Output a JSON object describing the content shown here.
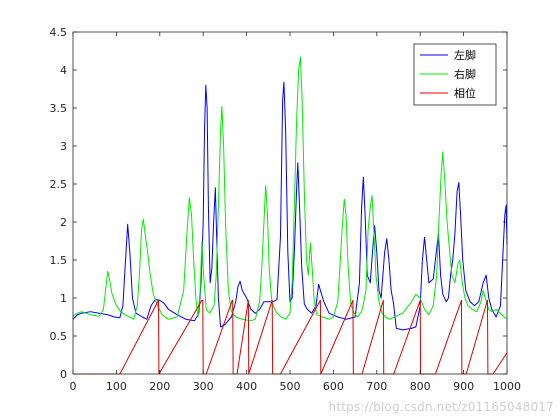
{
  "chart_data": {
    "type": "line",
    "title": "",
    "xlabel": "",
    "ylabel": "",
    "xlim": [
      0,
      1000
    ],
    "ylim": [
      0,
      4.5
    ],
    "xticks": [
      0,
      100,
      200,
      300,
      400,
      500,
      600,
      700,
      800,
      900,
      1000
    ],
    "yticks": [
      0,
      0.5,
      1,
      1.5,
      2,
      2.5,
      3,
      3.5,
      4,
      4.5
    ],
    "grid": false,
    "legend_position": "top-right",
    "series": [
      {
        "name": "左脚",
        "color": "#0000ff",
        "points": [
          [
            0,
            0.72
          ],
          [
            10,
            0.78
          ],
          [
            20,
            0.8
          ],
          [
            40,
            0.82
          ],
          [
            60,
            0.8
          ],
          [
            80,
            0.78
          ],
          [
            95,
            0.75
          ],
          [
            108,
            0.74
          ],
          [
            115,
            0.9
          ],
          [
            120,
            1.4
          ],
          [
            126,
            1.97
          ],
          [
            131,
            1.6
          ],
          [
            137,
            1.0
          ],
          [
            145,
            0.8
          ],
          [
            160,
            0.75
          ],
          [
            170,
            0.72
          ],
          [
            180,
            0.9
          ],
          [
            190,
            0.98
          ],
          [
            200,
            0.97
          ],
          [
            210,
            0.93
          ],
          [
            220,
            0.85
          ],
          [
            240,
            0.78
          ],
          [
            260,
            0.72
          ],
          [
            280,
            0.7
          ],
          [
            290,
            0.8
          ],
          [
            295,
            1.2
          ],
          [
            300,
            2.0
          ],
          [
            303,
            3.2
          ],
          [
            306,
            3.8
          ],
          [
            309,
            3.5
          ],
          [
            312,
            2.2
          ],
          [
            316,
            1.2
          ],
          [
            320,
            1.4
          ],
          [
            324,
            2.0
          ],
          [
            328,
            2.45
          ],
          [
            331,
            1.8
          ],
          [
            335,
            1.0
          ],
          [
            340,
            0.62
          ],
          [
            350,
            0.65
          ],
          [
            365,
            0.75
          ],
          [
            375,
            0.95
          ],
          [
            380,
            1.15
          ],
          [
            385,
            1.22
          ],
          [
            390,
            1.1
          ],
          [
            400,
            1.0
          ],
          [
            410,
            0.85
          ],
          [
            420,
            0.8
          ],
          [
            430,
            0.85
          ],
          [
            440,
            0.95
          ],
          [
            460,
            0.95
          ],
          [
            470,
            0.98
          ],
          [
            478,
            1.8
          ],
          [
            483,
            3.6
          ],
          [
            486,
            3.84
          ],
          [
            490,
            3.2
          ],
          [
            495,
            1.6
          ],
          [
            500,
            0.95
          ],
          [
            505,
            1.0
          ],
          [
            510,
            1.6
          ],
          [
            515,
            2.4
          ],
          [
            518,
            2.78
          ],
          [
            522,
            2.2
          ],
          [
            527,
            1.4
          ],
          [
            533,
            0.92
          ],
          [
            540,
            0.85
          ],
          [
            550,
            0.8
          ],
          [
            560,
            0.9
          ],
          [
            566,
            1.18
          ],
          [
            570,
            1.1
          ],
          [
            578,
            0.95
          ],
          [
            590,
            0.8
          ],
          [
            610,
            0.75
          ],
          [
            630,
            0.72
          ],
          [
            650,
            0.75
          ],
          [
            660,
            1.2
          ],
          [
            665,
            2.2
          ],
          [
            669,
            2.59
          ],
          [
            673,
            2.1
          ],
          [
            678,
            1.3
          ],
          [
            685,
            1.2
          ],
          [
            690,
            1.6
          ],
          [
            695,
            1.95
          ],
          [
            700,
            1.6
          ],
          [
            705,
            1.1
          ],
          [
            710,
            1.0
          ],
          [
            718,
            1.6
          ],
          [
            723,
            1.78
          ],
          [
            728,
            1.5
          ],
          [
            733,
            1.1
          ],
          [
            738,
            0.95
          ],
          [
            745,
            0.6
          ],
          [
            760,
            0.58
          ],
          [
            780,
            0.6
          ],
          [
            790,
            0.62
          ],
          [
            800,
            0.9
          ],
          [
            805,
            1.5
          ],
          [
            810,
            1.8
          ],
          [
            815,
            1.5
          ],
          [
            820,
            1.2
          ],
          [
            830,
            1.25
          ],
          [
            837,
            1.6
          ],
          [
            842,
            1.85
          ],
          [
            847,
            1.3
          ],
          [
            852,
            1.05
          ],
          [
            860,
            0.95
          ],
          [
            865,
            1.0
          ],
          [
            870,
            1.3
          ],
          [
            875,
            1.5
          ],
          [
            880,
            1.85
          ],
          [
            885,
            2.4
          ],
          [
            889,
            2.52
          ],
          [
            893,
            2.1
          ],
          [
            898,
            1.5
          ],
          [
            905,
            1.1
          ],
          [
            915,
            0.95
          ],
          [
            925,
            0.9
          ],
          [
            935,
            0.95
          ],
          [
            945,
            1.2
          ],
          [
            952,
            1.3
          ],
          [
            958,
            1.0
          ],
          [
            965,
            0.85
          ],
          [
            975,
            0.75
          ],
          [
            985,
            0.9
          ],
          [
            990,
            1.5
          ],
          [
            995,
            2.1
          ],
          [
            998,
            2.22
          ],
          [
            1000,
            1.7
          ]
        ]
      },
      {
        "name": "右脚",
        "color": "#00ee00",
        "points": [
          [
            0,
            0.76
          ],
          [
            10,
            0.8
          ],
          [
            20,
            0.82
          ],
          [
            30,
            0.8
          ],
          [
            40,
            0.78
          ],
          [
            50,
            0.77
          ],
          [
            60,
            0.76
          ],
          [
            70,
            0.85
          ],
          [
            75,
            1.1
          ],
          [
            80,
            1.35
          ],
          [
            85,
            1.22
          ],
          [
            90,
            1.05
          ],
          [
            100,
            0.9
          ],
          [
            110,
            0.82
          ],
          [
            120,
            0.78
          ],
          [
            130,
            0.75
          ],
          [
            140,
            0.72
          ],
          [
            148,
            0.9
          ],
          [
            153,
            1.3
          ],
          [
            158,
            1.9
          ],
          [
            162,
            2.04
          ],
          [
            166,
            1.85
          ],
          [
            172,
            1.6
          ],
          [
            178,
            1.3
          ],
          [
            185,
            1.05
          ],
          [
            195,
            0.9
          ],
          [
            205,
            0.78
          ],
          [
            220,
            0.72
          ],
          [
            240,
            0.75
          ],
          [
            255,
            1.1
          ],
          [
            262,
            1.8
          ],
          [
            268,
            2.32
          ],
          [
            273,
            2.1
          ],
          [
            278,
            1.5
          ],
          [
            283,
            1.0
          ],
          [
            288,
            0.75
          ],
          [
            293,
            1.1
          ],
          [
            297,
            1.74
          ],
          [
            301,
            1.3
          ],
          [
            307,
            0.85
          ],
          [
            315,
            0.8
          ],
          [
            325,
            0.9
          ],
          [
            330,
            1.3
          ],
          [
            335,
            2.2
          ],
          [
            340,
            3.2
          ],
          [
            343,
            3.52
          ],
          [
            347,
            3.0
          ],
          [
            352,
            1.9
          ],
          [
            358,
            1.1
          ],
          [
            365,
            0.82
          ],
          [
            375,
            0.75
          ],
          [
            390,
            0.72
          ],
          [
            410,
            0.7
          ],
          [
            420,
            0.72
          ],
          [
            430,
            0.95
          ],
          [
            435,
            1.4
          ],
          [
            440,
            2.0
          ],
          [
            444,
            2.48
          ],
          [
            448,
            2.1
          ],
          [
            452,
            1.4
          ],
          [
            458,
            0.95
          ],
          [
            465,
            0.85
          ],
          [
            470,
            0.8
          ],
          [
            480,
            0.75
          ],
          [
            490,
            0.72
          ],
          [
            500,
            0.8
          ],
          [
            505,
            1.2
          ],
          [
            510,
            2.2
          ],
          [
            515,
            3.3
          ],
          [
            520,
            4.0
          ],
          [
            524,
            4.17
          ],
          [
            528,
            3.6
          ],
          [
            533,
            2.4
          ],
          [
            538,
            1.5
          ],
          [
            542,
            1.3
          ],
          [
            547,
            1.72
          ],
          [
            551,
            1.4
          ],
          [
            556,
            0.95
          ],
          [
            562,
            0.78
          ],
          [
            575,
            0.75
          ],
          [
            590,
            0.72
          ],
          [
            600,
            0.75
          ],
          [
            610,
            0.95
          ],
          [
            615,
            1.4
          ],
          [
            620,
            1.9
          ],
          [
            625,
            2.3
          ],
          [
            629,
            2.1
          ],
          [
            634,
            1.4
          ],
          [
            640,
            0.92
          ],
          [
            648,
            0.8
          ],
          [
            655,
            0.75
          ],
          [
            665,
            0.82
          ],
          [
            670,
            0.95
          ],
          [
            675,
            1.1
          ],
          [
            680,
            1.9
          ],
          [
            685,
            2.2
          ],
          [
            689,
            2.35
          ],
          [
            693,
            1.9
          ],
          [
            698,
            1.3
          ],
          [
            705,
            0.95
          ],
          [
            712,
            0.8
          ],
          [
            720,
            0.75
          ],
          [
            730,
            0.72
          ],
          [
            740,
            0.75
          ],
          [
            760,
            0.8
          ],
          [
            780,
            0.95
          ],
          [
            790,
            1.05
          ],
          [
            800,
            1.0
          ],
          [
            810,
            0.85
          ],
          [
            820,
            0.78
          ],
          [
            830,
            0.9
          ],
          [
            838,
            1.3
          ],
          [
            843,
            2.0
          ],
          [
            848,
            2.6
          ],
          [
            852,
            2.92
          ],
          [
            856,
            2.6
          ],
          [
            862,
            2.0
          ],
          [
            868,
            1.6
          ],
          [
            873,
            1.3
          ],
          [
            880,
            1.2
          ],
          [
            887,
            1.45
          ],
          [
            891,
            1.5
          ],
          [
            897,
            1.2
          ],
          [
            903,
            1.0
          ],
          [
            910,
            0.9
          ],
          [
            920,
            0.85
          ],
          [
            930,
            0.82
          ],
          [
            940,
            0.95
          ],
          [
            945,
            1.1
          ],
          [
            950,
            1.0
          ],
          [
            958,
            0.85
          ],
          [
            965,
            0.82
          ],
          [
            975,
            0.85
          ],
          [
            985,
            0.8
          ],
          [
            995,
            0.74
          ],
          [
            1000,
            0.73
          ]
        ]
      },
      {
        "name": "相位",
        "color": "#dd0000",
        "points": [
          [
            0,
            0
          ],
          [
            108,
            0
          ],
          [
            197,
            0.97
          ],
          [
            198,
            0
          ],
          [
            297,
            0.97
          ],
          [
            299,
            0.97
          ],
          [
            300,
            0
          ],
          [
            307,
            0
          ],
          [
            367,
            0.97
          ],
          [
            368,
            0.97
          ],
          [
            369,
            0
          ],
          [
            378,
            0
          ],
          [
            404,
            0.97
          ],
          [
            405,
            0
          ],
          [
            459,
            0.97
          ],
          [
            460,
            0
          ],
          [
            478,
            0
          ],
          [
            570,
            0.97
          ],
          [
            571,
            0
          ],
          [
            645,
            0.97
          ],
          [
            646,
            0
          ],
          [
            666,
            0
          ],
          [
            715,
            0.97
          ],
          [
            716,
            0
          ],
          [
            739,
            0
          ],
          [
            800,
            0.97
          ],
          [
            801,
            0
          ],
          [
            835,
            0
          ],
          [
            895,
            0.97
          ],
          [
            896,
            0
          ],
          [
            906,
            0
          ],
          [
            955,
            0.97
          ],
          [
            956,
            0
          ],
          [
            968,
            0
          ],
          [
            1000,
            0.28
          ]
        ]
      }
    ]
  },
  "watermark": "https://blog.csdn.net/z01165048017"
}
